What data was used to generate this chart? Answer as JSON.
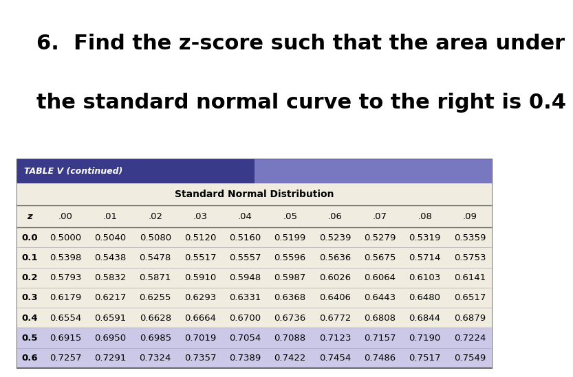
{
  "title_line1": "6.  Find the z-score such that the area under",
  "title_line2": "the standard normal curve to the right is 0.4",
  "table_title": "TABLE V (continued)",
  "col_header_center": "Standard Normal Distribution",
  "col_headers": [
    "z",
    ".00",
    ".01",
    ".02",
    ".03",
    ".04",
    ".05",
    ".06",
    ".07",
    ".08",
    ".09"
  ],
  "rows": [
    [
      "0.0",
      "0.5000",
      "0.5040",
      "0.5080",
      "0.5120",
      "0.5160",
      "0.5199",
      "0.5239",
      "0.5279",
      "0.5319",
      "0.5359"
    ],
    [
      "0.1",
      "0.5398",
      "0.5438",
      "0.5478",
      "0.5517",
      "0.5557",
      "0.5596",
      "0.5636",
      "0.5675",
      "0.5714",
      "0.5753"
    ],
    [
      "0.2",
      "0.5793",
      "0.5832",
      "0.5871",
      "0.5910",
      "0.5948",
      "0.5987",
      "0.6026",
      "0.6064",
      "0.6103",
      "0.6141"
    ],
    [
      "0.3",
      "0.6179",
      "0.6217",
      "0.6255",
      "0.6293",
      "0.6331",
      "0.6368",
      "0.6406",
      "0.6443",
      "0.6480",
      "0.6517"
    ],
    [
      "0.4",
      "0.6554",
      "0.6591",
      "0.6628",
      "0.6664",
      "0.6700",
      "0.6736",
      "0.6772",
      "0.6808",
      "0.6844",
      "0.6879"
    ],
    [
      "0.5",
      "0.6915",
      "0.6950",
      "0.6985",
      "0.7019",
      "0.7054",
      "0.7088",
      "0.7123",
      "0.7157",
      "0.7190",
      "0.7224"
    ],
    [
      "0.6",
      "0.7257",
      "0.7291",
      "0.7324",
      "0.7357",
      "0.7389",
      "0.7422",
      "0.7454",
      "0.7486",
      "0.7517",
      "0.7549"
    ]
  ],
  "highlighted_rows": [
    5,
    6
  ],
  "background_color": "#ffffff",
  "table_header_bg": "#4a4a9a",
  "table_header_text": "#ffffff",
  "table_bg": "#f0ece0",
  "table_highlight_bg": "#ccc8e8",
  "table_normal_bg": "#f0ece0",
  "title_fontsize": 22,
  "table_fontsize": 9.5
}
